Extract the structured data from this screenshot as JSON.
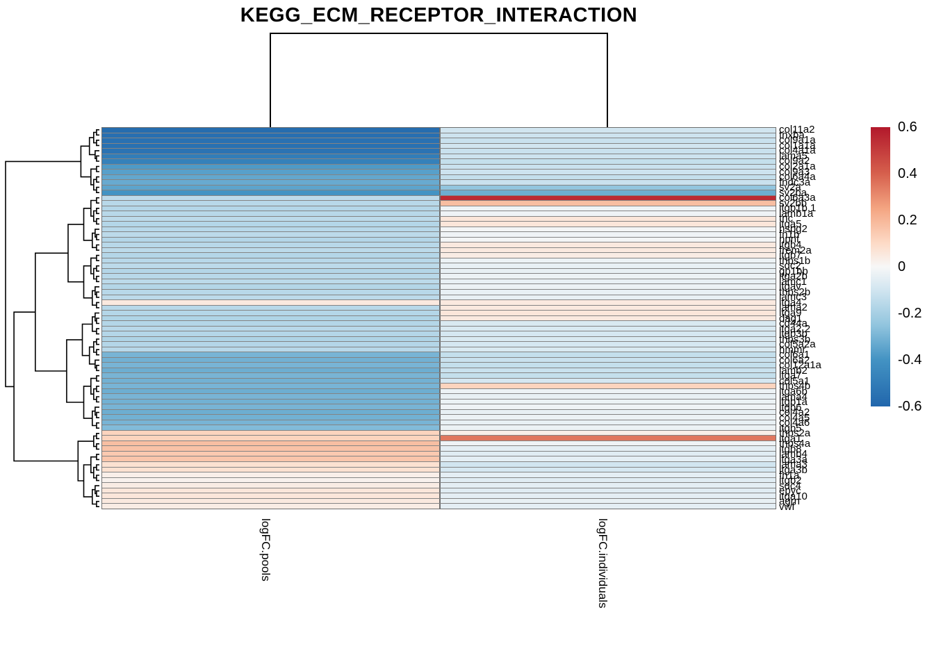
{
  "title": "KEGG_ECM_RECEPTOR_INTERACTION",
  "legend": {
    "ticks": [
      "0.6",
      "0.4",
      "0.2",
      "0",
      "-0.2",
      "-0.4",
      "-0.6"
    ],
    "min": -0.6,
    "max": 0.6
  },
  "colors": {
    "scale": [
      {
        "v": -0.6,
        "c": "#2166ac"
      },
      {
        "v": -0.4,
        "c": "#4393c3"
      },
      {
        "v": -0.25,
        "c": "#92c5de"
      },
      {
        "v": -0.1,
        "c": "#d1e5f0"
      },
      {
        "v": 0.0,
        "c": "#f7f7f7"
      },
      {
        "v": 0.1,
        "c": "#fddbc7"
      },
      {
        "v": 0.25,
        "c": "#f4a582"
      },
      {
        "v": 0.4,
        "c": "#d6604d"
      },
      {
        "v": 0.6,
        "c": "#b2182b"
      }
    ],
    "grid_line": "#848484",
    "dendrogram_line": "#000000"
  },
  "chart_data": {
    "type": "heatmap",
    "title": "KEGG_ECM_RECEPTOR_INTERACTION",
    "columns": [
      "logFC.pools",
      "logFC.individuals"
    ],
    "color_domain": [
      -0.6,
      0.6
    ],
    "legend_ticks": [
      0.6,
      0.4,
      0.2,
      0,
      -0.2,
      -0.4,
      -0.6
    ],
    "row_dendrogram": true,
    "col_dendrogram": true,
    "genes": [
      "col11a2",
      "tnxba",
      "col9a1a",
      "col1a1a",
      "col4a1a",
      "lama5",
      "col9a2",
      "col2a1a",
      "col9a3",
      "col6a4a",
      "fndc3a",
      "sv2a",
      "sv2ba",
      "col6a3a",
      "sv2bb",
      "itgb1b.1",
      "lamb1a",
      "tnc",
      "itga5",
      "hspg2",
      "fn1b",
      "npnt",
      "itgb4",
      "frem2a",
      "itgb7",
      "thbs1b",
      "sdc2",
      "gp1bb",
      "itga2b",
      "lamc1",
      "itgav",
      "thbs2b",
      "lamc3",
      "itga4",
      "lama2",
      "itga9",
      "dag1",
      "cd44a",
      "itga2.2",
      "itgb3b",
      "thbs3b",
      "col5a2a",
      "hmmr",
      "col6a1",
      "col6a2",
      "col12a1a",
      "lamb2",
      "itga7",
      "col5a1",
      "thbs4b",
      "itga6b",
      "lama4",
      "itgb1a",
      "itgb6",
      "col4a2",
      "col4a5",
      "col4a6",
      "itgb5",
      "thbs2a",
      "itga1",
      "thbs4a",
      "itgb8",
      "lamb4",
      "itga3a",
      "lama3",
      "itga3b",
      "fn1a",
      "itgb2",
      "sdc4",
      "epyc",
      "itga10",
      "agrn",
      "vwf"
    ],
    "series": [
      {
        "name": "logFC.pools",
        "values": [
          -0.57,
          -0.56,
          -0.55,
          -0.55,
          -0.54,
          -0.5,
          -0.48,
          -0.38,
          -0.36,
          -0.34,
          -0.33,
          -0.35,
          -0.4,
          -0.15,
          -0.16,
          -0.17,
          -0.16,
          -0.15,
          -0.17,
          -0.16,
          -0.15,
          -0.17,
          -0.16,
          -0.15,
          -0.17,
          -0.16,
          -0.15,
          -0.17,
          -0.16,
          -0.15,
          -0.17,
          -0.16,
          -0.15,
          0.05,
          -0.16,
          -0.17,
          -0.18,
          -0.17,
          -0.16,
          -0.17,
          -0.18,
          -0.17,
          -0.16,
          -0.3,
          -0.31,
          -0.3,
          -0.32,
          -0.3,
          -0.31,
          -0.3,
          -0.32,
          -0.3,
          -0.31,
          -0.3,
          -0.32,
          -0.31,
          -0.3,
          -0.28,
          0.12,
          0.12,
          0.18,
          0.17,
          0.15,
          0.16,
          0.08,
          0.08,
          0.03,
          0.02,
          0.04,
          0.06,
          0.06,
          0.05,
          0.04
        ]
      },
      {
        "name": "logFC.individuals",
        "values": [
          -0.1,
          -0.11,
          -0.12,
          -0.1,
          -0.12,
          -0.11,
          -0.13,
          -0.12,
          -0.11,
          -0.13,
          -0.12,
          -0.25,
          -0.32,
          0.55,
          0.18,
          -0.02,
          -0.02,
          0.06,
          0.06,
          -0.01,
          -0.02,
          -0.01,
          0.05,
          0.05,
          0.04,
          -0.03,
          -0.04,
          -0.04,
          -0.03,
          -0.04,
          -0.03,
          -0.04,
          -0.04,
          0.05,
          0.05,
          0.06,
          0.05,
          -0.08,
          -0.08,
          -0.09,
          -0.08,
          -0.09,
          -0.08,
          -0.13,
          -0.12,
          -0.13,
          -0.12,
          -0.13,
          -0.09,
          0.12,
          -0.03,
          -0.04,
          -0.03,
          -0.02,
          -0.04,
          -0.03,
          -0.04,
          -0.03,
          0.03,
          0.35,
          -0.02,
          -0.05,
          -0.06,
          -0.05,
          -0.1,
          -0.09,
          -0.05,
          -0.06,
          -0.05,
          -0.06,
          -0.05,
          -0.04,
          -0.05
        ]
      }
    ]
  }
}
